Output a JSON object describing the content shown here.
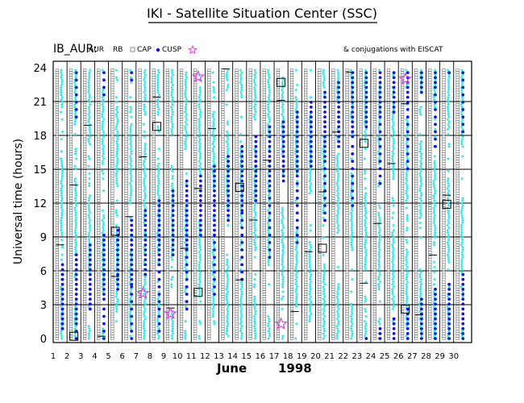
{
  "title": "IKI - Satellite Situation Center (SSC)",
  "chart_data": {
    "type": "scatter",
    "satellite_label": "IB_AUR:",
    "legend": [
      {
        "key": "AUR",
        "label": "AUR",
        "marker": "cyan-star",
        "color": "#33e6e6"
      },
      {
        "key": "RB",
        "label": "RB",
        "marker": "cyan-star",
        "color": "#33e6e6"
      },
      {
        "key": "CAP",
        "label": "CAP",
        "marker": "open-square",
        "color": "#777777"
      },
      {
        "key": "CUSP",
        "label": "CUSP",
        "marker": "filled-circle",
        "color": "#1010e0"
      },
      {
        "key": "EISCAT",
        "label": "",
        "marker": "magenta-star",
        "color": "#e040e0"
      }
    ],
    "conjugation_note": "& conjugations with EISCAT",
    "ylabel": "Universal time (hours)",
    "ylim": [
      0,
      24
    ],
    "yticks": [
      0,
      3,
      6,
      9,
      12,
      15,
      18,
      21,
      24
    ],
    "xlim": [
      1,
      31
    ],
    "xticks": [
      1,
      2,
      3,
      4,
      5,
      6,
      7,
      8,
      9,
      10,
      11,
      12,
      13,
      14,
      15,
      16,
      17,
      18,
      19,
      20,
      21,
      22,
      23,
      24,
      25,
      26,
      27,
      28,
      29,
      30
    ],
    "month_label": "June",
    "year_label": "1998",
    "grid": true,
    "eiscat_conjunctions": [
      {
        "day": 7,
        "ut": 4.0
      },
      {
        "day": 9,
        "ut": 2.2
      },
      {
        "day": 11,
        "ut": 23.2
      },
      {
        "day": 17,
        "ut": 1.3
      },
      {
        "day": 26,
        "ut": 23.0
      }
    ]
  },
  "colors": {
    "aurora": "#33e6e6",
    "cap": "#777777",
    "cusp": "#1010e0",
    "eiscat": "#e040e0"
  }
}
